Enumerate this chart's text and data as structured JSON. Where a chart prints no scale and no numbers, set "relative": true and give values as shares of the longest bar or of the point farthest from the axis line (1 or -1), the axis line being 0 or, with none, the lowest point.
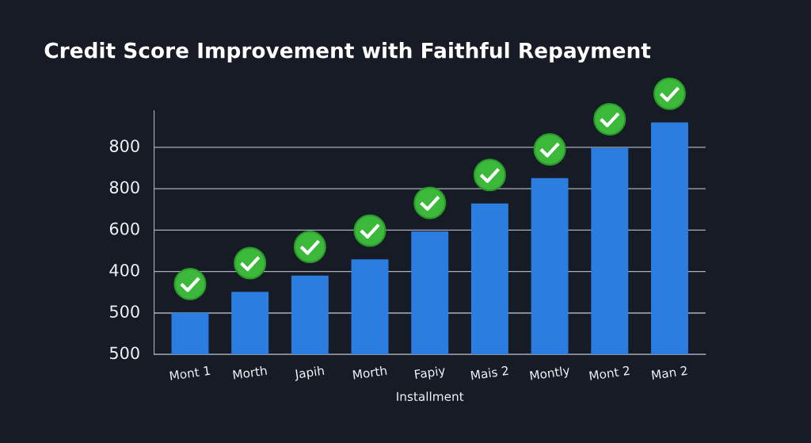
{
  "chart_data": {
    "type": "bar",
    "title": "Credit Score Improvement with Faithful Repayment",
    "xlabel": "Installment",
    "categories": [
      "Mont 1",
      "Morth",
      "Japih",
      "Morth",
      "Fapiy",
      "Mais 2",
      "Montly",
      "Mont 2",
      "Man 2"
    ],
    "values": [
      0.18,
      0.27,
      0.34,
      0.41,
      0.53,
      0.65,
      0.76,
      0.89,
      1.0
    ],
    "color": "#2b7de0",
    "relative": true,
    "annotations": [
      "800",
      "800",
      "600",
      "400",
      "500",
      "500"
    ],
    "grid": "y"
  }
}
